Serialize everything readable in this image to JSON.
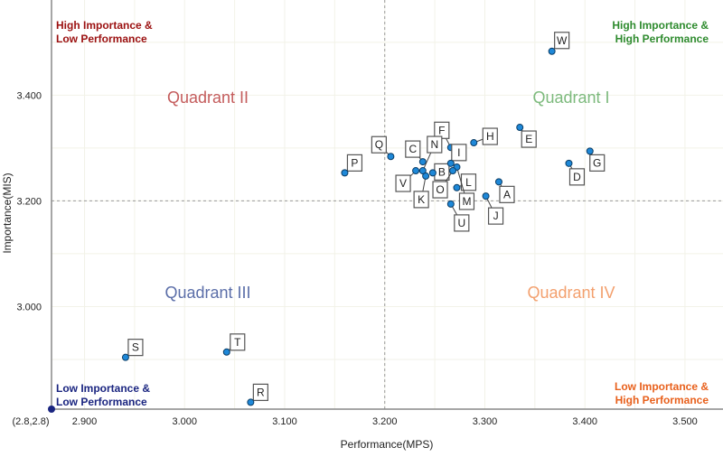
{
  "chart_data": {
    "type": "scatter",
    "xlabel": "Performance(MPS)",
    "ylabel": "Importance(MIS)",
    "xlim": [
      2.867,
      3.538
    ],
    "ylim": [
      2.806,
      3.58
    ],
    "x_ticks": [
      "2.900",
      "3.000",
      "3.100",
      "3.200",
      "3.300",
      "3.400",
      "3.500"
    ],
    "x_tick_values": [
      2.9,
      3.0,
      3.1,
      3.2,
      3.3,
      3.4,
      3.5
    ],
    "y_ticks": [
      "3.000",
      "3.200",
      "3.400"
    ],
    "y_tick_values": [
      3.0,
      3.2,
      3.4
    ],
    "origin_label": "(2.8,2.8)",
    "reference_lines": {
      "x": 3.2,
      "y": 3.2
    },
    "grid": true,
    "point_color": "#1e88d8",
    "points": [
      {
        "label": "A",
        "x": 3.314,
        "y": 3.236
      },
      {
        "label": "B",
        "x": 3.248,
        "y": 3.253
      },
      {
        "label": "C",
        "x": 3.238,
        "y": 3.274
      },
      {
        "label": "D",
        "x": 3.384,
        "y": 3.271
      },
      {
        "label": "E",
        "x": 3.335,
        "y": 3.339
      },
      {
        "label": "F",
        "x": 3.266,
        "y": 3.301
      },
      {
        "label": "G",
        "x": 3.405,
        "y": 3.294
      },
      {
        "label": "H",
        "x": 3.289,
        "y": 3.31
      },
      {
        "label": "I",
        "x": 3.266,
        "y": 3.271
      },
      {
        "label": "J",
        "x": 3.301,
        "y": 3.209
      },
      {
        "label": "K",
        "x": 3.241,
        "y": 3.247
      },
      {
        "label": "L",
        "x": 3.272,
        "y": 3.225
      },
      {
        "label": "M",
        "x": 3.272,
        "y": 3.264
      },
      {
        "label": "N",
        "x": 3.238,
        "y": 3.257
      },
      {
        "label": "O",
        "x": 3.268,
        "y": 3.257
      },
      {
        "label": "P",
        "x": 3.16,
        "y": 3.253
      },
      {
        "label": "Q",
        "x": 3.206,
        "y": 3.284
      },
      {
        "label": "R",
        "x": 3.066,
        "y": 2.819
      },
      {
        "label": "S",
        "x": 2.941,
        "y": 2.904
      },
      {
        "label": "T",
        "x": 3.042,
        "y": 2.914
      },
      {
        "label": "U",
        "x": 3.266,
        "y": 3.194
      },
      {
        "label": "V",
        "x": 3.231,
        "y": 3.257
      },
      {
        "label": "W",
        "x": 3.367,
        "y": 3.483
      }
    ],
    "quadrants": {
      "q1": {
        "label": "Quadrant I",
        "color": "#7dba7d"
      },
      "q2": {
        "label": "Quadrant II",
        "color": "#c45c5c"
      },
      "q3": {
        "label": "Quadrant III",
        "color": "#5b6ea8"
      },
      "q4": {
        "label": "Quadrant IV",
        "color": "#f3a06e"
      }
    },
    "corners": {
      "top_left": {
        "line1": "High Importance &",
        "line2": "Low Performance",
        "color": "#9b1010"
      },
      "top_right": {
        "line1": "High Importance &",
        "line2": "High Performance",
        "color": "#2e8b2e"
      },
      "bottom_left": {
        "line1": "Low Importance &",
        "line2": "Low Performance",
        "color": "#1a2580"
      },
      "bottom_right": {
        "line1": "Low Importance &",
        "line2": "High Performance",
        "color": "#e8601c"
      }
    }
  }
}
